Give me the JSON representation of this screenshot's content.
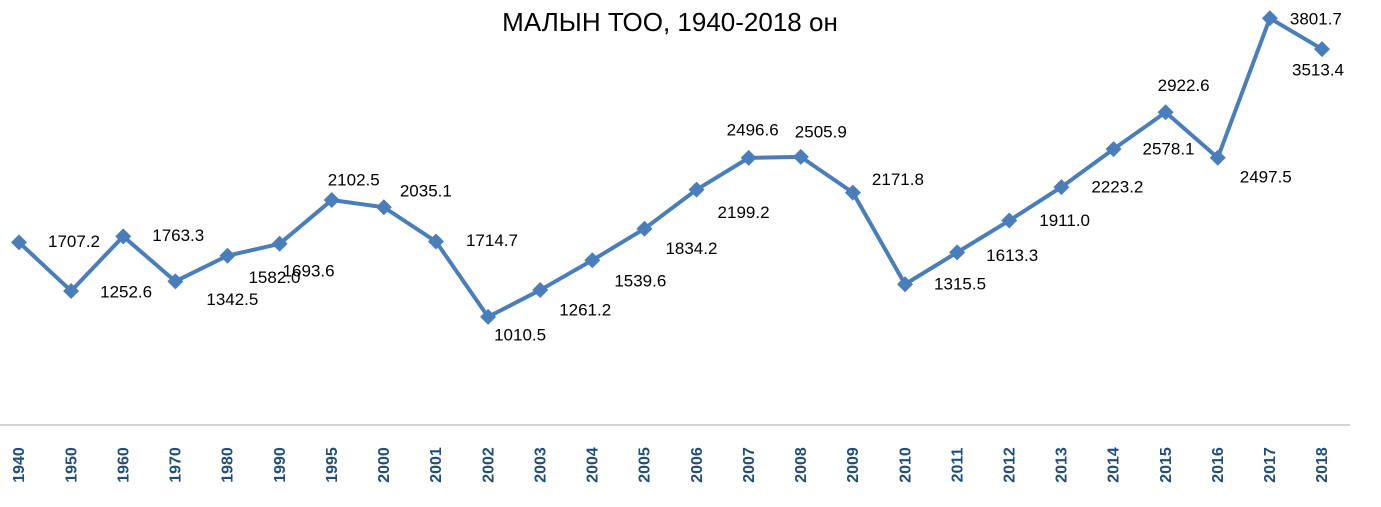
{
  "chart_data": {
    "type": "line",
    "title": "МАЛЫН ТОО, 1940-2018 он",
    "categories": [
      "1940",
      "1950",
      "1960",
      "1970",
      "1980",
      "1990",
      "1995",
      "2000",
      "2001",
      "2002",
      "2003",
      "2004",
      "2005",
      "2006",
      "2007",
      "2008",
      "2009",
      "2010",
      "2011",
      "2012",
      "2013",
      "2014",
      "2015",
      "2016",
      "2017",
      "2018"
    ],
    "series": [
      {
        "color": "#4a7ebb",
        "values": [
          1707.2,
          1252.6,
          1763.3,
          1342.5,
          1582.0,
          1693.6,
          2102.5,
          2035.1,
          1714.7,
          1010.5,
          1261.2,
          1539.6,
          1834.2,
          2199.2,
          2496.6,
          2505.9,
          2171.8,
          1315.5,
          1613.3,
          1911.0,
          2223.2,
          2578.1,
          2922.6,
          2497.5,
          3801.7,
          3513.4
        ],
        "value_labels": [
          "1707.2",
          "1252.6",
          "1763.3",
          "1342.5",
          "1582.0",
          "1693.6",
          "2102.5",
          "2035.1",
          "1714.7",
          "1010.5",
          "1261.2",
          "1539.6",
          "1834.2",
          "2199.2",
          "2496.6",
          "2505.9",
          "2171.8",
          "1315.5",
          "1613.3",
          "1911.0",
          "2223.2",
          "2578.1",
          "2922.6",
          "2497.5",
          "3801.7",
          "3513.4"
        ]
      }
    ],
    "ylim": [
      0,
      4000
    ]
  }
}
